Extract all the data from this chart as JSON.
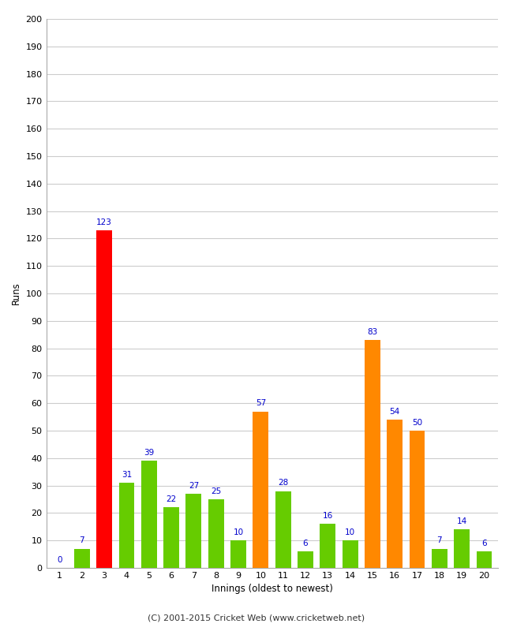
{
  "xlabel": "Innings (oldest to newest)",
  "ylabel": "Runs",
  "categories": [
    1,
    2,
    3,
    4,
    5,
    6,
    7,
    8,
    9,
    10,
    11,
    12,
    13,
    14,
    15,
    16,
    17,
    18,
    19,
    20
  ],
  "values": [
    0,
    7,
    123,
    31,
    39,
    22,
    27,
    25,
    10,
    57,
    28,
    6,
    16,
    10,
    83,
    54,
    50,
    7,
    14,
    6
  ],
  "colors": [
    "#66cc00",
    "#66cc00",
    "#ff0000",
    "#66cc00",
    "#66cc00",
    "#66cc00",
    "#66cc00",
    "#66cc00",
    "#66cc00",
    "#ff8800",
    "#66cc00",
    "#66cc00",
    "#66cc00",
    "#66cc00",
    "#ff8800",
    "#ff8800",
    "#ff8800",
    "#66cc00",
    "#66cc00",
    "#66cc00"
  ],
  "ylim": [
    0,
    200
  ],
  "yticks": [
    0,
    10,
    20,
    30,
    40,
    50,
    60,
    70,
    80,
    90,
    100,
    110,
    120,
    130,
    140,
    150,
    160,
    170,
    180,
    190,
    200
  ],
  "label_color": "#0000cc",
  "label_fontsize": 7.5,
  "axis_tick_fontsize": 8,
  "axis_label_fontsize": 8.5,
  "footer": "(C) 2001-2015 Cricket Web (www.cricketweb.net)",
  "footer_fontsize": 8,
  "background_color": "#ffffff",
  "grid_color": "#cccccc",
  "bar_width": 0.7
}
